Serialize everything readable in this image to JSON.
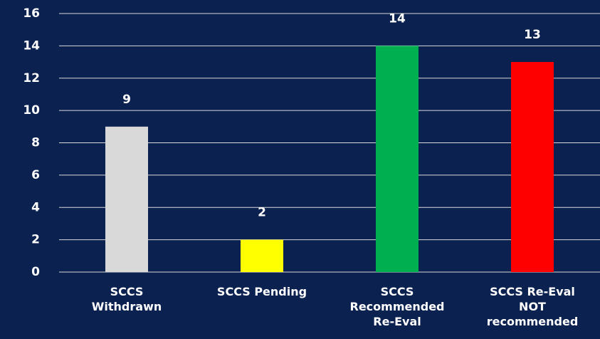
{
  "chart_data": {
    "type": "bar",
    "categories": [
      "SCCS Withdrawn",
      "SCCS Pending",
      "SCCS Recommended Re-Eval",
      "SCCS Re-Eval NOT recommended"
    ],
    "values": [
      9,
      2,
      14,
      13
    ],
    "colors": [
      "#d9d9d9",
      "#ffff00",
      "#00b050",
      "#ff0000"
    ],
    "ylim": [
      0,
      16
    ],
    "yticks": [
      0,
      2,
      4,
      6,
      8,
      10,
      12,
      14,
      16
    ],
    "grid": true
  }
}
